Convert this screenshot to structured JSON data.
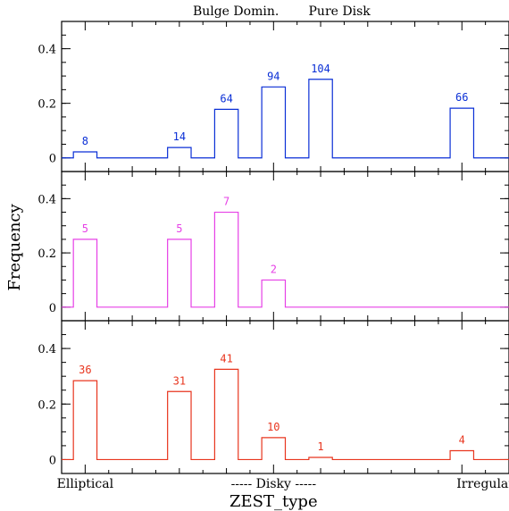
{
  "chart_data": {
    "type": "histogram",
    "xlabel": "ZEST_type",
    "ylabel": "Frequency",
    "x_range": [
      0.5,
      10.0
    ],
    "ylim": [
      -0.05,
      0.5
    ],
    "y_ticks": [
      0,
      0.2,
      0.4
    ],
    "y_tick_labels": [
      "0",
      "0.2",
      "0.4"
    ],
    "top_labels": [
      {
        "text": "Bulge Domin.",
        "x": 4.2
      },
      {
        "text": "Pure Disk",
        "x": 6.4
      }
    ],
    "bottom_labels": [
      {
        "text": "Elliptical",
        "x": 1.0
      },
      {
        "text": "----- Disky -----",
        "x": 5.0
      },
      {
        "text": "Irregular",
        "x": 9.5
      }
    ],
    "bin_width": 0.5,
    "panels": [
      {
        "color": "#0a2fd6",
        "bars": [
          {
            "x": 1.0,
            "value": 0.022,
            "count": "8"
          },
          {
            "x": 3.0,
            "value": 0.038,
            "count": "14"
          },
          {
            "x": 4.0,
            "value": 0.178,
            "count": "64"
          },
          {
            "x": 5.0,
            "value": 0.26,
            "count": "94"
          },
          {
            "x": 6.0,
            "value": 0.288,
            "count": "104"
          },
          {
            "x": 9.0,
            "value": 0.182,
            "count": "66"
          }
        ]
      },
      {
        "color": "#e640e6",
        "bars": [
          {
            "x": 1.0,
            "value": 0.25,
            "count": "5"
          },
          {
            "x": 3.0,
            "value": 0.25,
            "count": "5"
          },
          {
            "x": 4.0,
            "value": 0.35,
            "count": "7"
          },
          {
            "x": 5.0,
            "value": 0.1,
            "count": "2"
          }
        ]
      },
      {
        "color": "#e8351e",
        "bars": [
          {
            "x": 1.0,
            "value": 0.284,
            "count": "36"
          },
          {
            "x": 3.0,
            "value": 0.245,
            "count": "31"
          },
          {
            "x": 4.0,
            "value": 0.325,
            "count": "41"
          },
          {
            "x": 5.0,
            "value": 0.079,
            "count": "10"
          },
          {
            "x": 6.0,
            "value": 0.008,
            "count": "1"
          },
          {
            "x": 9.0,
            "value": 0.032,
            "count": "4"
          }
        ]
      }
    ]
  }
}
